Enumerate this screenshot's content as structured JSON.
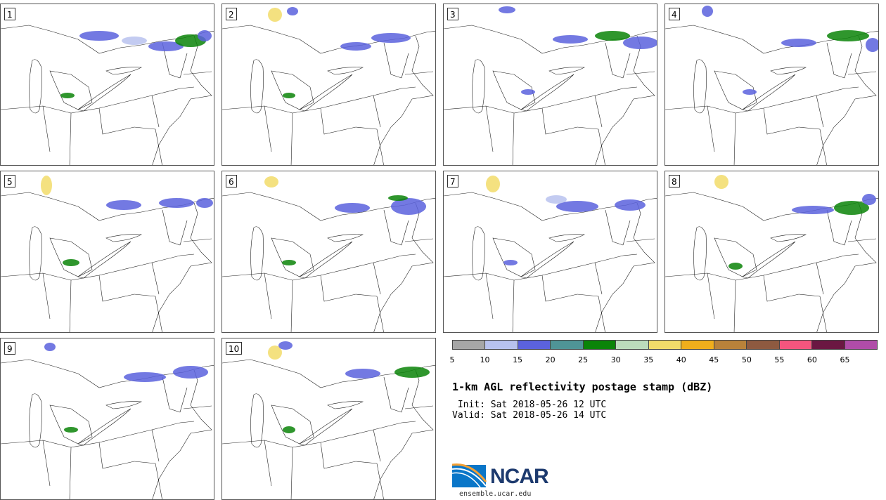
{
  "panels": [
    {
      "label": "1"
    },
    {
      "label": "2"
    },
    {
      "label": "3"
    },
    {
      "label": "4"
    },
    {
      "label": "5"
    },
    {
      "label": "6"
    },
    {
      "label": "7"
    },
    {
      "label": "8"
    },
    {
      "label": "9"
    },
    {
      "label": "10"
    }
  ],
  "colorbar": {
    "colors": [
      "#a6a6a6",
      "#b8c2ee",
      "#5b62dd",
      "#4f9496",
      "#0a8408",
      "#bcdcbc",
      "#f2dc6a",
      "#f0ae1c",
      "#b9823a",
      "#8e5a40",
      "#f4557e",
      "#6b1742",
      "#b04ca8"
    ],
    "ticks": [
      "5",
      "10",
      "15",
      "20",
      "25",
      "30",
      "35",
      "40",
      "45",
      "50",
      "55",
      "60",
      "65"
    ]
  },
  "title": "1-km AGL reflectivity postage stamp (dBZ)",
  "init_line": " Init: Sat 2018-05-26 12 UTC",
  "valid_line": "Valid: Sat 2018-05-26 14 UTC",
  "logo": {
    "text": "NCAR",
    "colors": [
      "#0a76c8",
      "#1d3a6e",
      "#f5a033"
    ]
  },
  "site": "ensemble.ucar.edu"
}
